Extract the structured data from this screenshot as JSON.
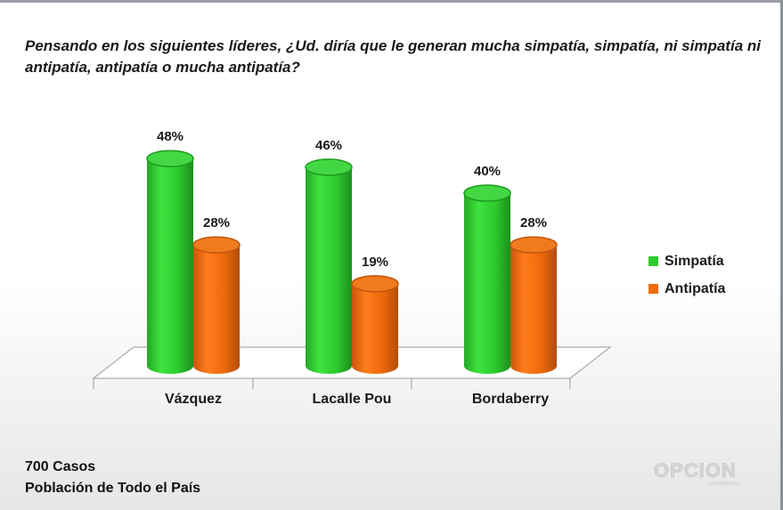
{
  "question": "Pensando en los siguientes líderes, ¿Ud. diría que le generan mucha simpatía, simpatía, ni simpatía ni antipatía, antipatía o mucha antipatía?",
  "chart_data": {
    "type": "bar",
    "categories": [
      "Vázquez",
      "Lacalle Pou",
      "Bordaberry"
    ],
    "series": [
      {
        "name": "Simpatía",
        "values": [
          48,
          46,
          40
        ],
        "color": "#2ecc2e"
      },
      {
        "name": "Antipatía",
        "values": [
          28,
          19,
          28
        ],
        "color": "#ee6a0c"
      }
    ],
    "value_suffix": "%",
    "ylim": [
      0,
      50
    ],
    "legend": "right",
    "grid": false,
    "style": "3d-cylinder"
  },
  "footer": {
    "cases": "700 Casos",
    "population": "Población de Todo el País"
  },
  "logo": {
    "name": "OPCION",
    "tagline": "consultores"
  }
}
